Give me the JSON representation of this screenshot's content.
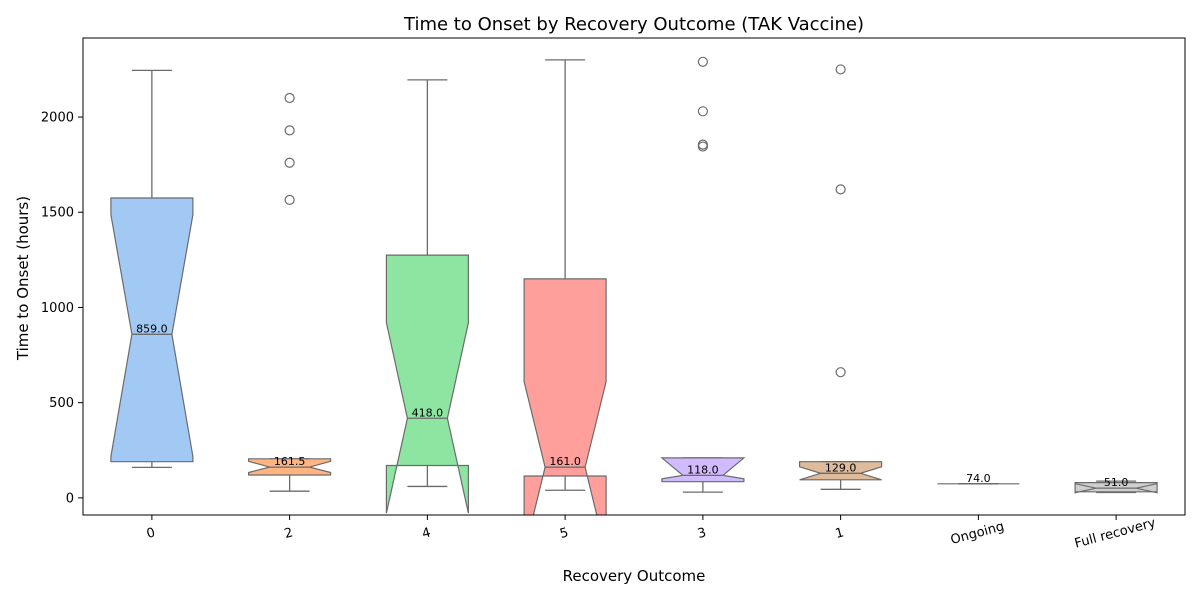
{
  "chart_data": {
    "type": "boxplot",
    "notched": true,
    "title": "Time to Onset by Recovery Outcome (TAK Vaccine)",
    "xlabel": "Recovery Outcome",
    "ylabel": "Time to Onset (hours)",
    "ylim": [
      -90,
      2415
    ],
    "yticks": [
      0,
      500,
      1000,
      1500,
      2000
    ],
    "grid": false,
    "legend": "none",
    "categories": [
      {
        "label": "0",
        "color": "#a1c9f4",
        "whisker_low": 160,
        "q1": 190,
        "median": 859.0,
        "q3": 1575,
        "whisker_high": 2245,
        "notch_low": 217,
        "notch_high": 1487,
        "outliers": []
      },
      {
        "label": "2",
        "color": "#ffb482",
        "whisker_low": 35,
        "q1": 120,
        "median": 161.5,
        "q3": 205,
        "whisker_high": 205,
        "notch_low": 133,
        "notch_high": 192,
        "outliers": [
          1565,
          1760,
          1930,
          2100
        ]
      },
      {
        "label": "4",
        "color": "#8de5a1",
        "whisker_low": 60,
        "q1": 170,
        "median": 418.0,
        "q3": 1275,
        "whisker_high": 2195,
        "notch_low": -80,
        "notch_high": 920,
        "outliers": []
      },
      {
        "label": "5",
        "color": "#ff9f9b",
        "whisker_low": 40,
        "q1": 115,
        "median": 161.0,
        "q3": 1150,
        "whisker_high": 2300,
        "notch_low": -290,
        "notch_high": 610,
        "outliers": []
      },
      {
        "label": "3",
        "color": "#d0bbff",
        "whisker_low": 30,
        "q1": 85,
        "median": 118.0,
        "q3": 210,
        "whisker_high": 210,
        "notch_low": 100,
        "notch_high": 210,
        "outliers": [
          1845,
          1855,
          2030,
          2290
        ]
      },
      {
        "label": "1",
        "color": "#debb9b",
        "whisker_low": 45,
        "q1": 95,
        "median": 129.0,
        "q3": 190,
        "whisker_high": 190,
        "notch_low": 95,
        "notch_high": 163,
        "outliers": [
          660,
          1620,
          2250
        ]
      },
      {
        "label": "Ongoing",
        "color": "#fab0e4",
        "whisker_low": 74,
        "q1": 74,
        "median": 74.0,
        "q3": 74,
        "whisker_high": 74,
        "notch_low": 74,
        "notch_high": 74,
        "outliers": []
      },
      {
        "label": "Full recovery",
        "color": "#cfcfcf",
        "whisker_low": 28,
        "q1": 32,
        "median": 51.0,
        "q3": 80,
        "whisker_high": 88,
        "notch_low": 75,
        "notch_high": 27,
        "outliers": []
      }
    ]
  }
}
